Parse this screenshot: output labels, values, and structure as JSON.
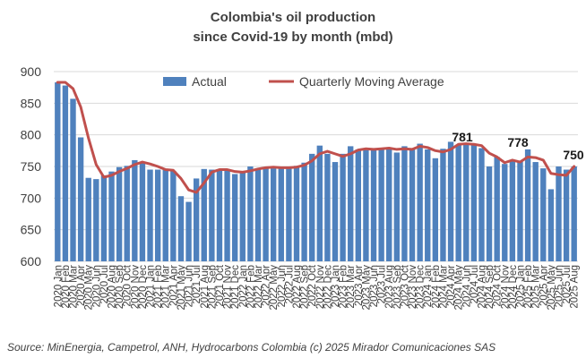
{
  "chart_data": {
    "type": "bar",
    "title_lines": [
      "Colombia's oil production",
      "since Covid-19 by month (mbd)"
    ],
    "categories": [
      "2020 Jan",
      "2020 Feb",
      "2020 Mar",
      "2020 Apr",
      "2020 May",
      "2020 Jun",
      "2020 Jul",
      "2020 Aug",
      "2020 Sep",
      "2020 Oct",
      "2020 Nov",
      "2020 Dec",
      "2021 Jan",
      "2021 Feb",
      "2021 Mar",
      "2021 Apr",
      "2021 May",
      "2021 Jun",
      "2021 Jul",
      "2021 Aug",
      "2021 Sep",
      "2021 Oct",
      "2021 Nov",
      "2021 Dec",
      "2022 Jan",
      "2022 Feb",
      "2022 Mar",
      "2022 Apr",
      "2022 May",
      "2022 Jun",
      "2022 Jul",
      "2022 Aug",
      "2022 Sep",
      "2022 Oct",
      "2022 Nov",
      "2022 Dec",
      "2023 Jan",
      "2023 Feb",
      "2023 Mar",
      "2023 Apr",
      "2023 May",
      "2023 Jun",
      "2023 Jul",
      "2023 Aug",
      "2023 Sep",
      "2023 Oct",
      "2023 Nov",
      "2023 Dec",
      "2024 Jan",
      "2024 Feb",
      "2024 Mar",
      "2024 Apr",
      "2024 May",
      "2024 Jun",
      "2024 Jul",
      "2024 Aug",
      "2024 Sep",
      "2024 Oct",
      "2024 Nov",
      "2024 Dec",
      "2025 Jan",
      "2025 Feb",
      "2025 Mar",
      "2025 Apr",
      "2025 May",
      "2025 Jun",
      "2025 Jul",
      "2025 Aug"
    ],
    "series": [
      {
        "name": "Actual",
        "kind": "bar",
        "color": "#4f81bd",
        "values": [
          883,
          878,
          857,
          796,
          732,
          730,
          736,
          742,
          749,
          751,
          760,
          757,
          745,
          745,
          745,
          743,
          703,
          694,
          731,
          746,
          745,
          744,
          744,
          738,
          742,
          750,
          747,
          748,
          747,
          749,
          749,
          751,
          756,
          770,
          783,
          770,
          757,
          770,
          782,
          777,
          776,
          778,
          779,
          780,
          772,
          782,
          777,
          786,
          777,
          763,
          778,
          789,
          784,
          786,
          784,
          779,
          750,
          765,
          754,
          759,
          758,
          777,
          757,
          747,
          714,
          750,
          745,
          750
        ]
      },
      {
        "name": "Quarterly Moving Average",
        "kind": "line",
        "color": "#c0504d",
        "values": [
          883,
          883,
          873,
          844,
          795,
          753,
          733,
          736,
          742,
          747,
          753,
          757,
          754,
          750,
          745,
          744,
          731,
          713,
          709,
          724,
          741,
          745,
          745,
          742,
          741,
          743,
          746,
          748,
          749,
          748,
          748,
          749,
          752,
          759,
          770,
          774,
          770,
          766,
          770,
          776,
          778,
          777,
          778,
          779,
          777,
          778,
          777,
          782,
          780,
          775,
          773,
          777,
          785,
          786,
          785,
          783,
          771,
          765,
          756,
          760,
          757,
          765,
          764,
          760,
          739,
          737,
          736,
          750
        ]
      }
    ],
    "annotations": [
      "781",
      "778",
      "750"
    ],
    "ylim": [
      600,
      900
    ],
    "yticks": [
      "600",
      "650",
      "700",
      "750",
      "800",
      "850",
      "900"
    ],
    "grid": true,
    "legend_position": "top"
  },
  "footer": {
    "source": "Source: MinEnergia, Campetrol, ANH, Hydrocarbons Colombia (c) 2025 Mirador Comunicaciones SAS"
  }
}
